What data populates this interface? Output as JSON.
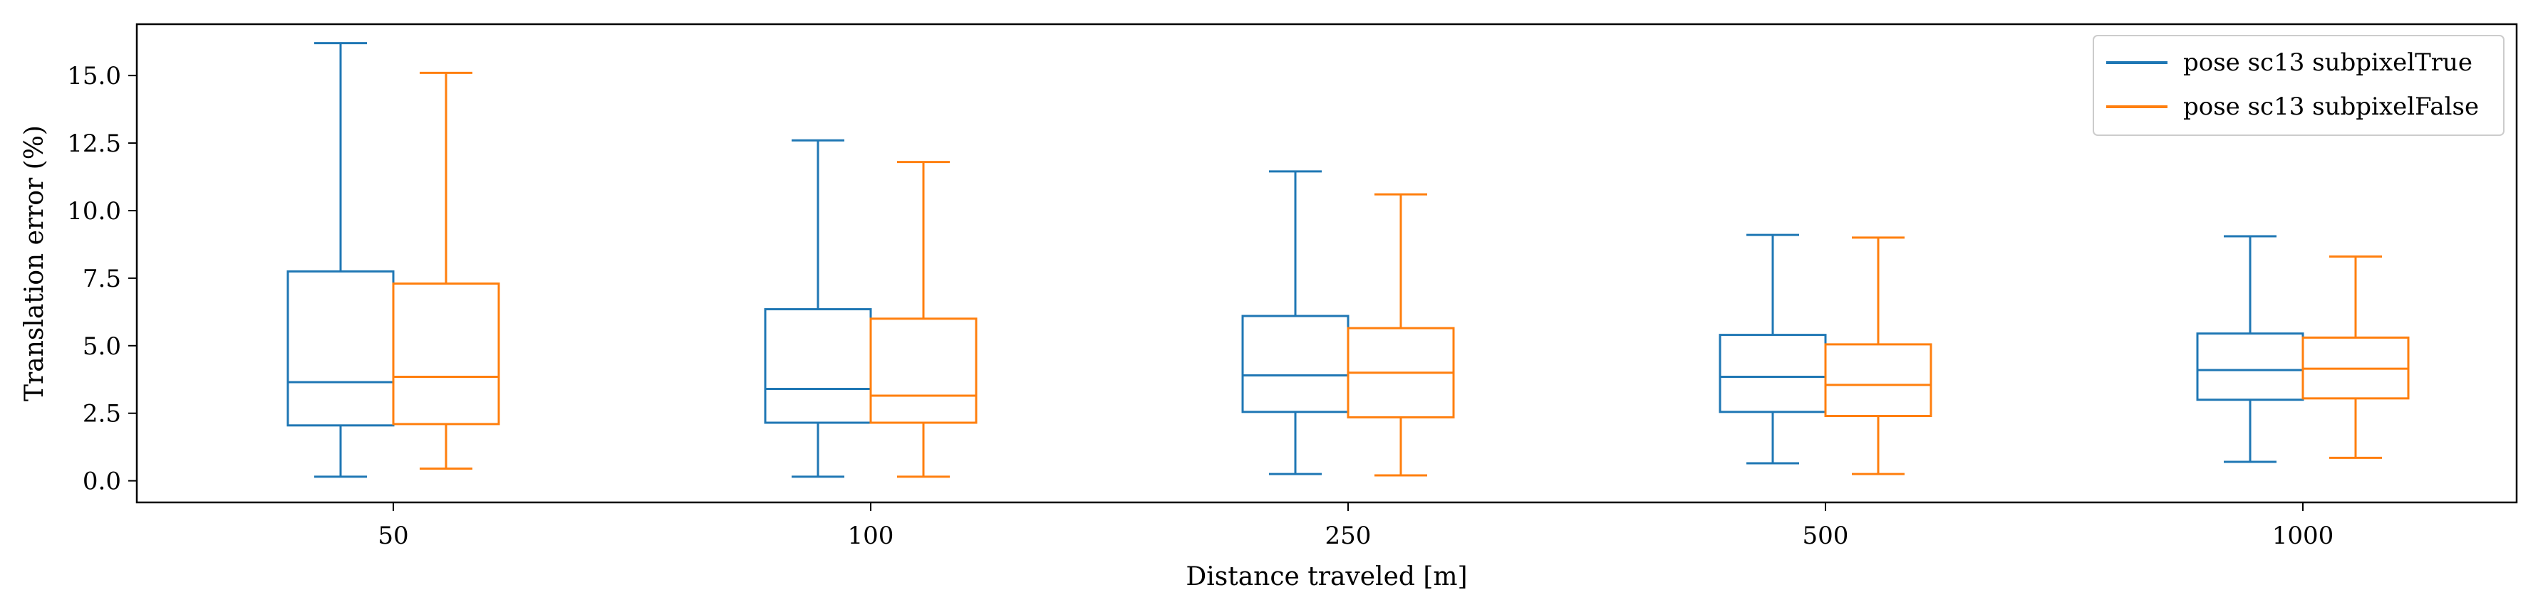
{
  "chart_data": {
    "type": "box",
    "xlabel": "Distance traveled [m]",
    "ylabel": "Translation error (%)",
    "categories": [
      "50",
      "100",
      "250",
      "500",
      "1000"
    ],
    "ylim": [
      -0.8,
      16.9
    ],
    "yticks": [
      0.0,
      2.5,
      5.0,
      7.5,
      10.0,
      12.5,
      15.0
    ],
    "ytick_labels": [
      "0.0",
      "2.5",
      "5.0",
      "7.5",
      "10.0",
      "12.5",
      "15.0"
    ],
    "grid": false,
    "legend_position": "top-right",
    "series": [
      {
        "name": "pose sc13 subpixelTrue",
        "color": "#1f77b4",
        "boxes": [
          {
            "whislo": 0.15,
            "q1": 2.05,
            "med": 3.65,
            "q3": 7.75,
            "whishi": 16.2
          },
          {
            "whislo": 0.15,
            "q1": 2.15,
            "med": 3.4,
            "q3": 6.35,
            "whishi": 12.6
          },
          {
            "whislo": 0.25,
            "q1": 2.55,
            "med": 3.9,
            "q3": 6.1,
            "whishi": 11.45
          },
          {
            "whislo": 0.65,
            "q1": 2.55,
            "med": 3.85,
            "q3": 5.4,
            "whishi": 9.1
          },
          {
            "whislo": 0.7,
            "q1": 3.0,
            "med": 4.1,
            "q3": 5.45,
            "whishi": 9.05
          }
        ]
      },
      {
        "name": "pose sc13 subpixelFalse",
        "color": "#ff7f0e",
        "boxes": [
          {
            "whislo": 0.45,
            "q1": 2.1,
            "med": 3.85,
            "q3": 7.3,
            "whishi": 15.1
          },
          {
            "whislo": 0.15,
            "q1": 2.15,
            "med": 3.15,
            "q3": 6.0,
            "whishi": 11.8
          },
          {
            "whislo": 0.2,
            "q1": 2.35,
            "med": 4.0,
            "q3": 5.65,
            "whishi": 10.6
          },
          {
            "whislo": 0.25,
            "q1": 2.4,
            "med": 3.55,
            "q3": 5.05,
            "whishi": 9.0
          },
          {
            "whislo": 0.85,
            "q1": 3.05,
            "med": 4.15,
            "q3": 5.3,
            "whishi": 8.3
          }
        ]
      }
    ]
  }
}
